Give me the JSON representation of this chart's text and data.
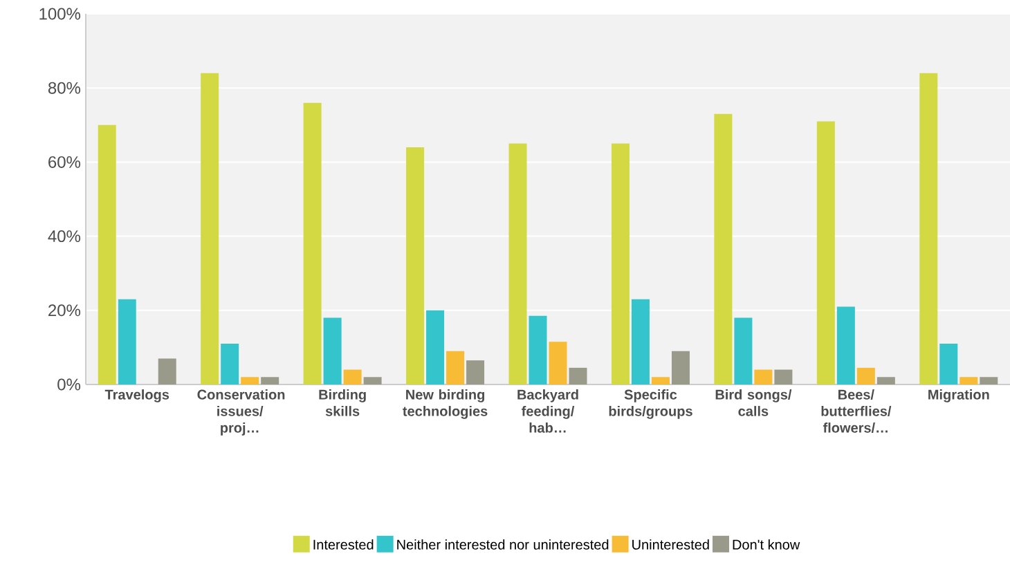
{
  "chart_data": {
    "type": "bar",
    "categories": [
      "Travelogs",
      "Conservation issues/proj…",
      "Birding skills",
      "New birding technologies",
      "Backyard feeding/hab…",
      "Specific birds/groups",
      "Bird songs/calls",
      "Bees/butterflies/flowers/…",
      "Migration"
    ],
    "series": [
      {
        "name": "Interested",
        "color": "#d3d942",
        "values": [
          70,
          84,
          76,
          64,
          65,
          65,
          73,
          71,
          84
        ]
      },
      {
        "name": "Neither interested nor uninterested",
        "color": "#33c4cc",
        "values": [
          23,
          11,
          18,
          20,
          18.5,
          23,
          18,
          21,
          11
        ]
      },
      {
        "name": "Uninterested",
        "color": "#f8bb35",
        "values": [
          0,
          2,
          4,
          9,
          11.5,
          2,
          4,
          4.5,
          2
        ]
      },
      {
        "name": "Don't know",
        "color": "#9a9a8a",
        "values": [
          7,
          2,
          2,
          6.5,
          4.5,
          9,
          4,
          2,
          2
        ]
      }
    ],
    "ylim": [
      0,
      100
    ],
    "yticks": [
      {
        "value": 0,
        "label": "0%"
      },
      {
        "value": 20,
        "label": "20%"
      },
      {
        "value": 40,
        "label": "40%"
      },
      {
        "value": 60,
        "label": "60%"
      },
      {
        "value": 80,
        "label": "80%"
      },
      {
        "value": 100,
        "label": "100%"
      }
    ],
    "grid": "y",
    "legend": "bottom"
  }
}
